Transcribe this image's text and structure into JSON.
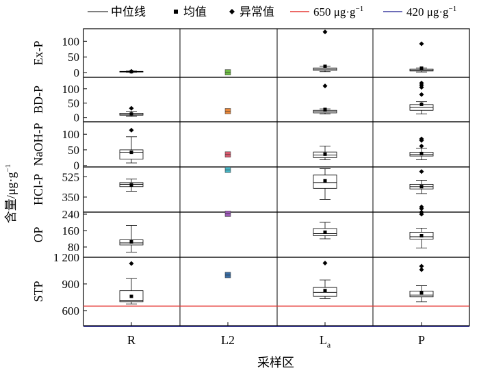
{
  "legend": {
    "median_label": "中位线",
    "mean_label": "均值",
    "outlier_label": "异常值",
    "line1_label": "650 μg·g",
    "line1_exp": "−1",
    "line2_label": "420 μg·g",
    "line2_exp": "−1"
  },
  "y_axis_title": "含量/μg·g",
  "y_axis_title_exp": "−1",
  "x_axis_title": "采样区",
  "chart_data": {
    "type": "boxplot",
    "categories": [
      {
        "label": "R",
        "sub": ""
      },
      {
        "label": "L2",
        "sub": ""
      },
      {
        "label": "L",
        "sub": "a"
      },
      {
        "label": "P",
        "sub": ""
      }
    ],
    "reference_lines": [
      {
        "value": 650,
        "color": "#e53935",
        "panel": "STP"
      },
      {
        "value": 420,
        "color": "#3f3fa0",
        "panel": "STP"
      }
    ],
    "panels": [
      {
        "name": "Ex-P",
        "ylim": [
          -15,
          140
        ],
        "ticks": [
          {
            "v": 0,
            "t": "0"
          },
          {
            "v": 50,
            "t": "50"
          },
          {
            "v": 100,
            "t": "100"
          }
        ],
        "boxes": [
          {
            "type": "box",
            "q1": 2,
            "median": 3,
            "q3": 4,
            "whislo": 1,
            "whishi": 5,
            "mean": 3,
            "outliers": [
              4
            ]
          },
          {
            "type": "point",
            "value": 1,
            "color": "#6dbb45"
          },
          {
            "type": "box",
            "q1": 7,
            "median": 11,
            "q3": 15,
            "whislo": 3,
            "whishi": 20,
            "mean": 20,
            "outliers": [
              130
            ]
          },
          {
            "type": "box",
            "q1": 5,
            "median": 8,
            "q3": 11,
            "whislo": 2,
            "whishi": 15,
            "mean": 14,
            "outliers": [
              92
            ]
          }
        ]
      },
      {
        "name": "BD-P",
        "ylim": [
          -15,
          140
        ],
        "ticks": [
          {
            "v": 0,
            "t": "0"
          },
          {
            "v": 50,
            "t": "50"
          },
          {
            "v": 100,
            "t": "100"
          }
        ],
        "boxes": [
          {
            "type": "box",
            "q1": 8,
            "median": 11,
            "q3": 15,
            "whislo": 4,
            "whishi": 22,
            "mean": 12,
            "outliers": [
              32
            ]
          },
          {
            "type": "point",
            "value": 22,
            "color": "#e8873b"
          },
          {
            "type": "box",
            "q1": 16,
            "median": 20,
            "q3": 25,
            "whislo": 12,
            "whishi": 30,
            "mean": 28,
            "outliers": [
              110
            ]
          },
          {
            "type": "box",
            "q1": 25,
            "median": 35,
            "q3": 45,
            "whislo": 12,
            "whishi": 55,
            "mean": 46,
            "outliers": [
              80,
              105,
              113,
              120
            ]
          }
        ]
      },
      {
        "name": "NaOH-P",
        "ylim": [
          -5,
          140
        ],
        "ticks": [
          {
            "v": 0,
            "t": "0"
          },
          {
            "v": 50,
            "t": "50"
          },
          {
            "v": 100,
            "t": "100"
          }
        ],
        "boxes": [
          {
            "type": "box",
            "q1": 20,
            "median": 42,
            "q3": 50,
            "whislo": 8,
            "whishi": 92,
            "mean": 42,
            "outliers": [
              113
            ]
          },
          {
            "type": "point",
            "value": 35,
            "color": "#d95b6f"
          },
          {
            "type": "box",
            "q1": 25,
            "median": 33,
            "q3": 43,
            "whislo": 18,
            "whishi": 62,
            "mean": 36,
            "outliers": []
          },
          {
            "type": "box",
            "q1": 30,
            "median": 35,
            "q3": 42,
            "whislo": 18,
            "whishi": 55,
            "mean": 38,
            "outliers": [
              62,
              80,
              85
            ]
          }
        ]
      },
      {
        "name": "HCl-P",
        "ylim": [
          220,
          610
        ],
        "ticks": [
          {
            "v": 350,
            "t": "350"
          },
          {
            "v": 525,
            "t": "525"
          }
        ],
        "boxes": [
          {
            "type": "box",
            "q1": 440,
            "median": 460,
            "q3": 475,
            "whislo": 400,
            "whishi": 505,
            "mean": 455,
            "outliers": []
          },
          {
            "type": "point",
            "value": 585,
            "color": "#47b8c8"
          },
          {
            "type": "box",
            "q1": 425,
            "median": 475,
            "q3": 540,
            "whislo": 330,
            "whishi": 595,
            "mean": 490,
            "outliers": []
          },
          {
            "type": "box",
            "q1": 420,
            "median": 440,
            "q3": 460,
            "whislo": 380,
            "whishi": 495,
            "mean": 440,
            "outliers": [
              570,
              265,
              250
            ]
          }
        ]
      },
      {
        "name": "OP",
        "ylim": [
          30,
          250
        ],
        "ticks": [
          {
            "v": 80,
            "t": "80"
          },
          {
            "v": 160,
            "t": "160"
          },
          {
            "v": 240,
            "t": "240"
          }
        ],
        "boxes": [
          {
            "type": "box",
            "q1": 90,
            "median": 100,
            "q3": 115,
            "whislo": 55,
            "whishi": 185,
            "mean": 105,
            "outliers": []
          },
          {
            "type": "point",
            "value": 242,
            "color": "#9b59b6"
          },
          {
            "type": "box",
            "q1": 135,
            "median": 145,
            "q3": 170,
            "whislo": 120,
            "whishi": 200,
            "mean": 152,
            "outliers": []
          },
          {
            "type": "box",
            "q1": 118,
            "median": 130,
            "q3": 152,
            "whislo": 75,
            "whishi": 172,
            "mean": 135,
            "outliers": [
              240,
              250
            ]
          }
        ]
      },
      {
        "name": "STP",
        "ylim": [
          430,
          1200
        ],
        "ticks": [
          {
            "v": 600,
            "t": "600"
          },
          {
            "v": 900,
            "t": "900"
          },
          {
            "v": 1200,
            "t": "1 200"
          }
        ],
        "boxes": [
          {
            "type": "box",
            "q1": 700,
            "median": 710,
            "q3": 825,
            "whislo": 675,
            "whishi": 960,
            "mean": 760,
            "outliers": [
              1130
            ]
          },
          {
            "type": "point",
            "value": 1000,
            "color": "#3a6fa8"
          },
          {
            "type": "box",
            "q1": 760,
            "median": 805,
            "q3": 860,
            "whislo": 735,
            "whishi": 945,
            "mean": 825,
            "outliers": [
              1135
            ]
          },
          {
            "type": "box",
            "q1": 755,
            "median": 775,
            "q3": 820,
            "whislo": 700,
            "whishi": 880,
            "mean": 800,
            "outliers": [
              1060,
              1100
            ]
          }
        ]
      }
    ]
  }
}
